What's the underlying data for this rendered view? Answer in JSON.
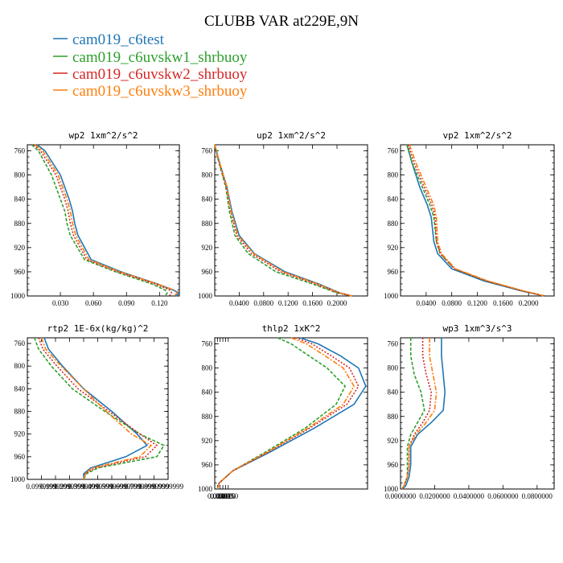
{
  "figure": {
    "title": "CLUBB VAR at229E,9N",
    "legend": [
      {
        "name": "cam019_c6test",
        "color": "#1f77b4"
      },
      {
        "name": "cam019_c6uvskw1_shrbuoy",
        "color": "#2ca02c"
      },
      {
        "name": "cam019_c6uvskw2_shrbuoy",
        "color": "#d62728"
      },
      {
        "name": "cam019_c6uvskw3_shrbuoy",
        "color": "#ff7f0e"
      }
    ]
  },
  "chart_data": [
    {
      "type": "line",
      "title": "wp2  1xm^2/s^2",
      "ylim": [
        1000,
        750
      ],
      "xlim": [
        0.0,
        0.138
      ],
      "yticks": [
        "760",
        "800",
        "840",
        "880",
        "920",
        "960",
        "1000"
      ],
      "xticks": [
        "0.030",
        "0.060",
        "0.090",
        "0.120"
      ],
      "series": [
        {
          "name": "cam019_c6test",
          "color": "#1f77b4",
          "dash": "",
          "x": [
            0.009,
            0.016,
            0.03,
            0.038,
            0.041,
            0.043,
            0.046,
            0.058,
            0.085,
            0.118,
            0.132,
            0.138,
            0.135
          ],
          "y": [
            750,
            760,
            800,
            840,
            860,
            880,
            900,
            940,
            960,
            980,
            990,
            995,
            1000
          ]
        },
        {
          "name": "cam019_c6uvskw1_shrbuoy",
          "color": "#2ca02c",
          "dash": "4,2",
          "x": [
            0.004,
            0.01,
            0.022,
            0.03,
            0.034,
            0.036,
            0.039,
            0.052,
            0.08,
            0.113,
            0.125,
            0.127,
            0.125
          ],
          "y": [
            750,
            760,
            800,
            840,
            860,
            880,
            900,
            940,
            960,
            980,
            990,
            995,
            1000
          ]
        },
        {
          "name": "cam019_c6uvskw2_shrbuoy",
          "color": "#d62728",
          "dash": "2,2",
          "x": [
            0.006,
            0.012,
            0.026,
            0.034,
            0.037,
            0.039,
            0.042,
            0.054,
            0.082,
            0.116,
            0.129,
            0.131,
            0.129
          ],
          "y": [
            750,
            760,
            800,
            840,
            860,
            880,
            900,
            940,
            960,
            980,
            990,
            995,
            1000
          ]
        },
        {
          "name": "cam019_c6uvskw3_shrbuoy",
          "color": "#ff7f0e",
          "dash": "6,2,2,2",
          "x": [
            0.007,
            0.014,
            0.028,
            0.036,
            0.039,
            0.041,
            0.044,
            0.056,
            0.084,
            0.118,
            0.133,
            0.136,
            0.133
          ],
          "y": [
            750,
            760,
            800,
            840,
            860,
            880,
            900,
            940,
            960,
            980,
            990,
            995,
            1000
          ]
        }
      ]
    },
    {
      "type": "line",
      "title": "up2  1xm^2/s^2",
      "ylim": [
        1000,
        750
      ],
      "xlim": [
        0.0,
        0.25
      ],
      "yticks": [
        "760",
        "800",
        "840",
        "880",
        "920",
        "960",
        "1000"
      ],
      "xticks": [
        "0.0400",
        "0.0800",
        "0.1200",
        "0.1600",
        "0.2000"
      ],
      "series": [
        {
          "name": "cam019_c6test",
          "color": "#1f77b4",
          "dash": "",
          "x": [
            0.0,
            0.008,
            0.02,
            0.028,
            0.04,
            0.065,
            0.115,
            0.17,
            0.205,
            0.225
          ],
          "y": [
            750,
            780,
            820,
            860,
            900,
            930,
            960,
            980,
            995,
            1000
          ]
        },
        {
          "name": "cam019_c6uvskw1_shrbuoy",
          "color": "#2ca02c",
          "dash": "4,2",
          "x": [
            0.0,
            0.007,
            0.018,
            0.024,
            0.033,
            0.055,
            0.1,
            0.16,
            0.2,
            0.225
          ],
          "y": [
            750,
            780,
            820,
            860,
            900,
            930,
            960,
            980,
            995,
            1000
          ]
        },
        {
          "name": "cam019_c6uvskw2_shrbuoy",
          "color": "#d62728",
          "dash": "2,2",
          "x": [
            0.0,
            0.007,
            0.019,
            0.026,
            0.036,
            0.06,
            0.108,
            0.165,
            0.202,
            0.225
          ],
          "y": [
            750,
            780,
            820,
            860,
            900,
            930,
            960,
            980,
            995,
            1000
          ]
        },
        {
          "name": "cam019_c6uvskw3_shrbuoy",
          "color": "#ff7f0e",
          "dash": "6,2,2,2",
          "x": [
            0.0,
            0.008,
            0.02,
            0.027,
            0.038,
            0.064,
            0.112,
            0.168,
            0.204,
            0.225
          ],
          "y": [
            750,
            780,
            820,
            860,
            900,
            930,
            960,
            980,
            995,
            1000
          ]
        }
      ]
    },
    {
      "type": "line",
      "title": "vp2  1xm^2/s^2",
      "ylim": [
        1000,
        750
      ],
      "xlim": [
        0.0,
        0.24
      ],
      "yticks": [
        "760",
        "800",
        "840",
        "880",
        "920",
        "960",
        "1000"
      ],
      "xticks": [
        "0.0400",
        "0.0800",
        "0.1200",
        "0.1600",
        "0.2000"
      ],
      "series": [
        {
          "name": "cam019_c6test",
          "color": "#1f77b4",
          "dash": "",
          "x": [
            0.01,
            0.018,
            0.03,
            0.042,
            0.048,
            0.05,
            0.052,
            0.058,
            0.08,
            0.13,
            0.19,
            0.225
          ],
          "y": [
            750,
            780,
            820,
            850,
            870,
            890,
            910,
            930,
            955,
            975,
            992,
            1000
          ]
        },
        {
          "name": "cam019_c6uvskw1_shrbuoy",
          "color": "#2ca02c",
          "dash": "4,2",
          "x": [
            0.01,
            0.018,
            0.034,
            0.046,
            0.052,
            0.054,
            0.056,
            0.062,
            0.084,
            0.134,
            0.192,
            0.225
          ],
          "y": [
            750,
            780,
            820,
            850,
            870,
            890,
            910,
            930,
            955,
            975,
            992,
            1000
          ]
        },
        {
          "name": "cam019_c6uvskw2_shrbuoy",
          "color": "#d62728",
          "dash": "2,2",
          "x": [
            0.012,
            0.021,
            0.037,
            0.049,
            0.054,
            0.055,
            0.056,
            0.062,
            0.084,
            0.134,
            0.192,
            0.225
          ],
          "y": [
            750,
            780,
            820,
            850,
            870,
            890,
            910,
            930,
            955,
            975,
            992,
            1000
          ]
        },
        {
          "name": "cam019_c6uvskw3_shrbuoy",
          "color": "#ff7f0e",
          "dash": "6,2,2,2",
          "x": [
            0.014,
            0.024,
            0.04,
            0.052,
            0.056,
            0.057,
            0.058,
            0.064,
            0.086,
            0.136,
            0.194,
            0.225
          ],
          "y": [
            750,
            780,
            820,
            850,
            870,
            890,
            910,
            930,
            955,
            975,
            992,
            1000
          ]
        }
      ]
    },
    {
      "type": "line",
      "title": "rtp2  1E-6x(kg/kg)^2",
      "ylim": [
        1000,
        750
      ],
      "xlim": [
        0.0,
        1.0
      ],
      "yticks": [
        "760",
        "800",
        "840",
        "880",
        "920",
        "960",
        "1000"
      ],
      "xticks": [
        "0.0999999",
        "0.1999999",
        "0.2999999",
        "0.3999999",
        "0.4999999",
        "0.5999999",
        "0.6999999",
        "0.7999999",
        "0.8999999",
        "0.9999999"
      ],
      "series": [
        {
          "name": "cam019_c6test",
          "color": "#1f77b4",
          "dash": "",
          "x": [
            0.12,
            0.15,
            0.25,
            0.4,
            0.6,
            0.78,
            0.85,
            0.7,
            0.45,
            0.4,
            0.4
          ],
          "y": [
            750,
            770,
            800,
            840,
            880,
            920,
            940,
            960,
            980,
            990,
            1000
          ]
        },
        {
          "name": "cam019_c6uvskw1_shrbuoy",
          "color": "#2ca02c",
          "dash": "4,2",
          "x": [
            0.05,
            0.08,
            0.17,
            0.32,
            0.55,
            0.8,
            0.97,
            0.92,
            0.5,
            0.42,
            0.4
          ],
          "y": [
            750,
            770,
            800,
            840,
            880,
            920,
            940,
            960,
            980,
            990,
            1000
          ]
        },
        {
          "name": "cam019_c6uvskw2_shrbuoy",
          "color": "#d62728",
          "dash": "2,2",
          "x": [
            0.08,
            0.11,
            0.21,
            0.36,
            0.58,
            0.8,
            0.92,
            0.84,
            0.48,
            0.41,
            0.4
          ],
          "y": [
            750,
            770,
            800,
            840,
            880,
            920,
            940,
            960,
            980,
            990,
            1000
          ]
        },
        {
          "name": "cam019_c6uvskw3_shrbuoy",
          "color": "#ff7f0e",
          "dash": "6,2,2,2",
          "x": [
            0.1,
            0.13,
            0.24,
            0.4,
            0.56,
            0.74,
            0.88,
            0.8,
            0.46,
            0.41,
            0.4
          ],
          "y": [
            750,
            770,
            800,
            840,
            880,
            920,
            940,
            960,
            980,
            990,
            1000
          ]
        }
      ]
    },
    {
      "type": "line",
      "title": "thlp2  1xK^2",
      "ylim": [
        1000,
        750
      ],
      "xlim": [
        0.0,
        0.17
      ],
      "yticks": [
        "760",
        "800",
        "840",
        "880",
        "920",
        "960",
        "1000"
      ],
      "xticks": [
        "0.0030",
        "0.0060",
        "0.0090",
        "0.0120",
        "0.0150"
      ],
      "series": [
        {
          "name": "cam019_c6test",
          "color": "#1f77b4",
          "dash": "",
          "x": [
            0.095,
            0.115,
            0.14,
            0.16,
            0.168,
            0.155,
            0.11,
            0.06,
            0.02,
            0.005,
            0.003
          ],
          "y": [
            750,
            760,
            780,
            800,
            830,
            860,
            900,
            940,
            970,
            990,
            1000
          ]
        },
        {
          "name": "cam019_c6uvskw1_shrbuoy",
          "color": "#2ca02c",
          "dash": "4,2",
          "x": [
            0.07,
            0.085,
            0.105,
            0.125,
            0.145,
            0.135,
            0.1,
            0.055,
            0.02,
            0.005,
            0.003
          ],
          "y": [
            750,
            760,
            780,
            800,
            830,
            860,
            900,
            940,
            970,
            990,
            1000
          ]
        },
        {
          "name": "cam019_c6uvskw2_shrbuoy",
          "color": "#d62728",
          "dash": "2,2",
          "x": [
            0.09,
            0.108,
            0.13,
            0.15,
            0.16,
            0.147,
            0.105,
            0.058,
            0.02,
            0.005,
            0.003
          ],
          "y": [
            750,
            760,
            780,
            800,
            830,
            860,
            900,
            940,
            970,
            990,
            1000
          ]
        },
        {
          "name": "cam019_c6uvskw3_shrbuoy",
          "color": "#ff7f0e",
          "dash": "6,2,2,2",
          "x": [
            0.085,
            0.102,
            0.123,
            0.143,
            0.155,
            0.143,
            0.103,
            0.057,
            0.02,
            0.005,
            0.003
          ],
          "y": [
            750,
            760,
            780,
            800,
            830,
            860,
            900,
            940,
            970,
            990,
            1000
          ]
        }
      ]
    },
    {
      "type": "line",
      "title": "wp3  1xm^3/s^3",
      "ylim": [
        1000,
        750
      ],
      "xlim": [
        0.0,
        0.09
      ],
      "yticks": [
        "760",
        "800",
        "840",
        "880",
        "920",
        "960",
        "1000"
      ],
      "xticks": [
        "0.0000000",
        "0.0200000",
        "0.0400000",
        "0.0600000",
        "0.0800000"
      ],
      "series": [
        {
          "name": "cam019_c6test",
          "color": "#1f77b4",
          "dash": "",
          "x": [
            0.024,
            0.024,
            0.025,
            0.026,
            0.025,
            0.018,
            0.01,
            0.006,
            0.006,
            0.005,
            0.003,
            0.001
          ],
          "y": [
            750,
            780,
            810,
            840,
            870,
            890,
            910,
            930,
            960,
            980,
            995,
            1000
          ]
        },
        {
          "name": "cam019_c6uvskw1_shrbuoy",
          "color": "#2ca02c",
          "dash": "4,2",
          "x": [
            0.006,
            0.006,
            0.008,
            0.012,
            0.014,
            0.01,
            0.006,
            0.004,
            0.004,
            0.004,
            0.002,
            0.001
          ],
          "y": [
            750,
            780,
            810,
            840,
            870,
            890,
            910,
            930,
            960,
            980,
            995,
            1000
          ]
        },
        {
          "name": "cam019_c6uvskw2_shrbuoy",
          "color": "#d62728",
          "dash": "2,2",
          "x": [
            0.013,
            0.013,
            0.015,
            0.018,
            0.017,
            0.013,
            0.008,
            0.005,
            0.005,
            0.004,
            0.002,
            0.001
          ],
          "y": [
            750,
            780,
            810,
            840,
            870,
            890,
            910,
            930,
            960,
            980,
            995,
            1000
          ]
        },
        {
          "name": "cam019_c6uvskw3_shrbuoy",
          "color": "#ff7f0e",
          "dash": "6,2,2,2",
          "x": [
            0.017,
            0.017,
            0.019,
            0.021,
            0.02,
            0.015,
            0.009,
            0.005,
            0.005,
            0.004,
            0.002,
            0.001
          ],
          "y": [
            750,
            780,
            810,
            840,
            870,
            890,
            910,
            930,
            960,
            980,
            995,
            1000
          ]
        }
      ]
    }
  ]
}
